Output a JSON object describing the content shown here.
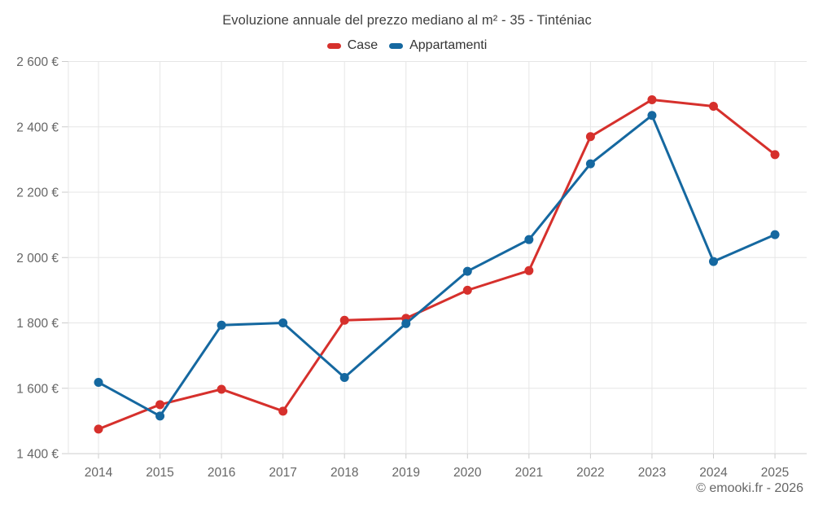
{
  "title": "Evoluzione annuale del prezzo mediano al m² - 35 - Tinténiac",
  "legend": [
    {
      "label": "Case",
      "color": "#d6302c"
    },
    {
      "label": "Appartamenti",
      "color": "#1568a0"
    }
  ],
  "footer": {
    "credit": "© emooki.fr - 2026"
  },
  "colors": {
    "case_red": "#d6302c",
    "apartment_blue": "#1568a0",
    "gridline": "#e6e6e6",
    "axis_line": "#cccccc",
    "axis_text": "#666666"
  },
  "chart_data": {
    "type": "line",
    "title": "Evoluzione annuale del prezzo mediano al m² - 35 - Tinténiac",
    "xlabel": "",
    "ylabel": "",
    "x": [
      2014,
      2015,
      2016,
      2017,
      2018,
      2019,
      2020,
      2021,
      2022,
      2023,
      2024,
      2025
    ],
    "series": [
      {
        "name": "Case",
        "color": "#d6302c",
        "values": [
          1475,
          1550,
          1597,
          1530,
          1808,
          1814,
          1900,
          1960,
          2370,
          2483,
          2463,
          2315
        ]
      },
      {
        "name": "Appartamenti",
        "color": "#1568a0",
        "values": [
          1618,
          1515,
          1793,
          1800,
          1633,
          1798,
          1958,
          2055,
          2287,
          2435,
          1988,
          2070
        ]
      }
    ],
    "ylim": [
      1400,
      2600
    ],
    "y_ticks": [
      1400,
      1600,
      1800,
      2000,
      2200,
      2400,
      2600
    ],
    "y_tick_labels": [
      "1 400 €",
      "1 600 €",
      "1 800 €",
      "2 000 €",
      "2 200 €",
      "2 400 €",
      "2 600 €"
    ],
    "grid": true,
    "legend_position": "top"
  }
}
